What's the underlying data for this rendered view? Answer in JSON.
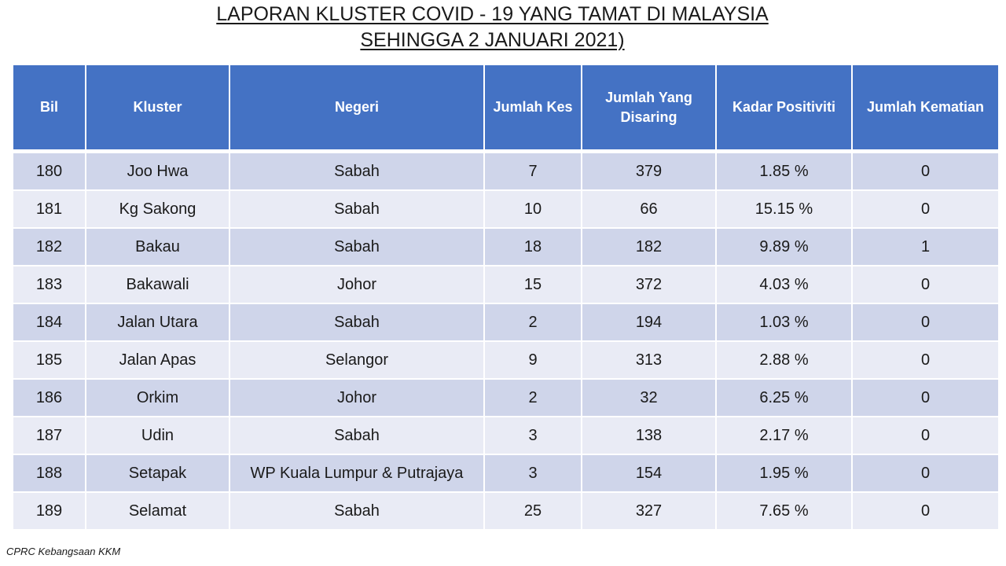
{
  "title": {
    "line1": "LAPORAN KLUSTER COVID - 19 YANG TAMAT DI MALAYSIA",
    "line2": "SEHINGGA 2 JANUARI 2021)"
  },
  "table": {
    "headers": [
      "Bil",
      "Kluster",
      "Negeri",
      "Jumlah Kes",
      "Jumlah Yang Disaring",
      "Kadar Positiviti",
      "Jumlah Kematian"
    ],
    "rows": [
      [
        "180",
        "Joo Hwa",
        "Sabah",
        "7",
        "379",
        "1.85 %",
        "0"
      ],
      [
        "181",
        "Kg Sakong",
        "Sabah",
        "10",
        "66",
        "15.15 %",
        "0"
      ],
      [
        "182",
        "Bakau",
        "Sabah",
        "18",
        "182",
        "9.89 %",
        "1"
      ],
      [
        "183",
        "Bakawali",
        "Johor",
        "15",
        "372",
        "4.03 %",
        "0"
      ],
      [
        "184",
        "Jalan Utara",
        "Sabah",
        "2",
        "194",
        "1.03 %",
        "0"
      ],
      [
        "185",
        "Jalan Apas",
        "Selangor",
        "9",
        "313",
        "2.88 %",
        "0"
      ],
      [
        "186",
        "Orkim",
        "Johor",
        "2",
        "32",
        "6.25 %",
        "0"
      ],
      [
        "187",
        "Udin",
        "Sabah",
        "3",
        "138",
        "2.17 %",
        "0"
      ],
      [
        "188",
        "Setapak",
        "WP Kuala Lumpur & Putrajaya",
        "3",
        "154",
        "1.95 %",
        "0"
      ],
      [
        "189",
        "Selamat",
        "Sabah",
        "25",
        "327",
        "7.65 %",
        "0"
      ]
    ]
  },
  "footer": "CPRC Kebangsaan KKM",
  "colors": {
    "header_bg": "#4472c4",
    "row_dark": "#cfd5ea",
    "row_light": "#e9ebf5"
  }
}
